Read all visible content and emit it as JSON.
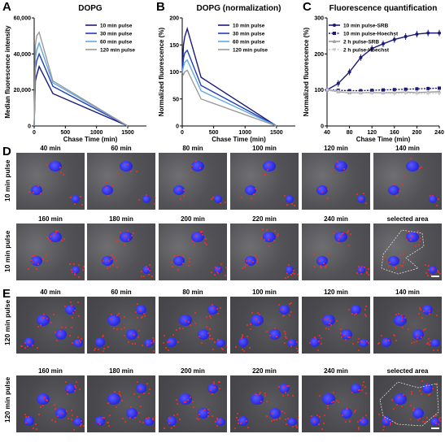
{
  "panels": {
    "a": "A",
    "b": "B",
    "c": "C",
    "d": "D",
    "e": "E"
  },
  "chart_data": [
    {
      "type": "line",
      "title": "DOPG",
      "xlabel": "Chase Time (min)",
      "ylabel": "Median fluorescence intensity",
      "xlim": [
        0,
        1800
      ],
      "ylim": [
        0,
        60000
      ],
      "xticks": [
        "0",
        "500",
        "1000",
        "1500"
      ],
      "yticks": [
        "0",
        "20,000",
        "40,000",
        "60,000"
      ],
      "legend": "top-right",
      "series": [
        {
          "name": "10 min pulse",
          "color": "#1a1a7a",
          "x": [
            0,
            20,
            40,
            80,
            300,
            1500
          ],
          "y": [
            0,
            25000,
            28000,
            33000,
            18000,
            0
          ]
        },
        {
          "name": "30 min pulse",
          "color": "#1f3fb8",
          "x": [
            0,
            20,
            40,
            80,
            300,
            1500
          ],
          "y": [
            0,
            32000,
            36000,
            40000,
            22000,
            0
          ]
        },
        {
          "name": "60 min pulse",
          "color": "#5fa8e8",
          "x": [
            0,
            20,
            40,
            80,
            300,
            1500
          ],
          "y": [
            0,
            38000,
            42000,
            46000,
            24000,
            0
          ]
        },
        {
          "name": "120 min pulse",
          "color": "#9a9a9a",
          "x": [
            0,
            20,
            40,
            80,
            300,
            1500
          ],
          "y": [
            0,
            45000,
            50000,
            52000,
            25000,
            0
          ]
        }
      ]
    },
    {
      "type": "line",
      "title": "DOPG (normalization)",
      "xlabel": "Chase Time (min)",
      "ylabel": "Normalized fluorescence (%)",
      "xlim": [
        0,
        1800
      ],
      "ylim": [
        0,
        200
      ],
      "xticks": [
        "0",
        "500",
        "1000",
        "1500"
      ],
      "yticks": [
        "0",
        "50",
        "100",
        "150",
        "200"
      ],
      "legend": "top-right",
      "series": [
        {
          "name": "10 min pulse",
          "color": "#1a1a7a",
          "x": [
            0,
            20,
            40,
            80,
            300,
            1500
          ],
          "y": [
            100,
            150,
            165,
            180,
            90,
            0
          ]
        },
        {
          "name": "30 min pulse",
          "color": "#1f3fb8",
          "x": [
            0,
            20,
            40,
            80,
            300,
            1500
          ],
          "y": [
            100,
            125,
            135,
            140,
            75,
            0
          ]
        },
        {
          "name": "60 min pulse",
          "color": "#5fa8e8",
          "x": [
            0,
            20,
            40,
            80,
            300,
            1500
          ],
          "y": [
            100,
            110,
            118,
            122,
            65,
            0
          ]
        },
        {
          "name": "120 min pulse",
          "color": "#9a9a9a",
          "x": [
            0,
            20,
            40,
            80,
            300,
            1500
          ],
          "y": [
            100,
            95,
            100,
            103,
            50,
            0
          ]
        }
      ]
    },
    {
      "type": "line",
      "title": "Fluorescence quantification",
      "xlabel": "Chase Time (min)",
      "ylabel": "Normalized fluorescence (%)",
      "xlim": [
        40,
        240
      ],
      "ylim": [
        0,
        300
      ],
      "xticks": [
        "40",
        "80",
        "120",
        "160",
        "200",
        "240"
      ],
      "yticks": [
        "0",
        "100",
        "200",
        "300"
      ],
      "legend": "top-left",
      "x": [
        40,
        60,
        80,
        100,
        120,
        140,
        160,
        180,
        200,
        220,
        240
      ],
      "series": [
        {
          "name": "10 min pulse-SRB",
          "color": "#1a1a7a",
          "marker": "circle",
          "y": [
            100,
            118,
            150,
            190,
            215,
            228,
            240,
            248,
            255,
            258,
            258
          ]
        },
        {
          "name": "10 min pulse-Hoechst",
          "color": "#1a1a7a",
          "marker": "square",
          "dashed": true,
          "y": [
            100,
            99,
            98,
            98,
            99,
            100,
            101,
            102,
            103,
            104,
            105
          ]
        },
        {
          "name": "2 h pulse-SRB",
          "color": "#9a9a9a",
          "marker": "triangle",
          "y": [
            100,
            95,
            92,
            92,
            93,
            92,
            93,
            94,
            93,
            94,
            95
          ]
        },
        {
          "name": "2 h pulse-Hoechst",
          "color": "#c8c8c8",
          "marker": "triangle-down",
          "dashed": true,
          "y": [
            100,
            96,
            93,
            92,
            91,
            91,
            90,
            91,
            90,
            90,
            90
          ]
        }
      ]
    }
  ],
  "panel_d": {
    "row_label": "10 min pulse",
    "row1": [
      "40 min",
      "60 min",
      "80 min",
      "100 min",
      "120 min",
      "140 min"
    ],
    "row2": [
      "160 min",
      "180 min",
      "200 min",
      "220 min",
      "240 min",
      "selected area"
    ]
  },
  "panel_e": {
    "row_label": "120 min pulse",
    "row1": [
      "40 min",
      "60 min",
      "80 min",
      "100 min",
      "120 min",
      "140 min"
    ],
    "row2": [
      "160 min",
      "180 min",
      "200 min",
      "220 min",
      "240 min",
      "selected area"
    ]
  }
}
